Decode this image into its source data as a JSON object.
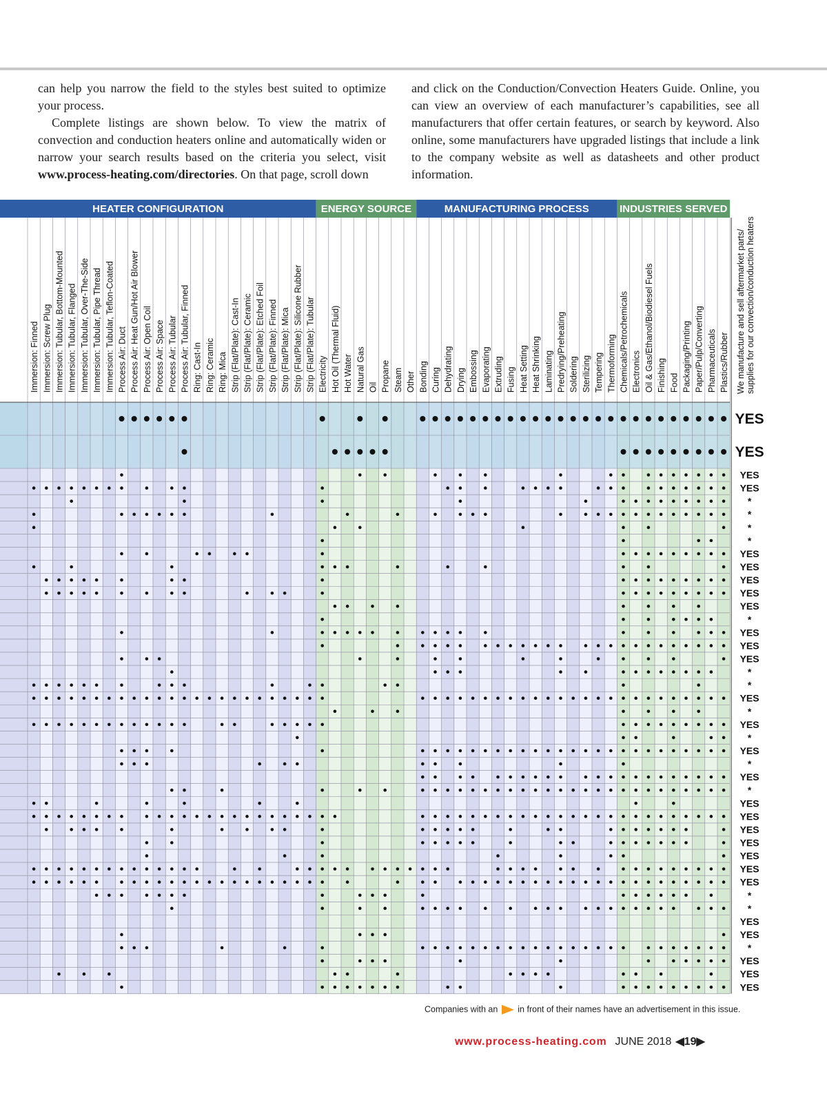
{
  "text": {
    "left": {
      "p1": "can help you narrow the field to the styles best suited to optimize your process.",
      "p2a": "Complete listings are shown below. To view the matrix of convection and conduction heaters online and automatically widen or narrow your search results based on the criteria you select, visit ",
      "p2url": "www.process-heating.com/directories",
      "p2b": ". On that page, scroll down"
    },
    "right": {
      "p1": "and click on the Conduction/Convection Heaters Guide. Online, you can view an overview of each manufacturer’s capabilities, see all manufacturers that offer certain features, or search by keyword. Also online, some manufacturers have upgraded listings that include a link to the company website as well as datasheets and other product information."
    }
  },
  "table": {
    "sections": [
      {
        "title": "HEATER CONFIGURATION",
        "columns": [
          "Immersion: Finned",
          "Immersion: Screw Plug",
          "Immersion: Tubular, Bottom-Mounted",
          "Immersion: Tubular, Flanged",
          "Immersion: Tubular, Over-The-Side",
          "Immersion: Tubular, Pipe Thread",
          "Immersion: Tubular, Teflon-Coated",
          "Process Air: Duct",
          "Process Air: Heat Gun/Hot Air Blower",
          "Process Air: Open Coil",
          "Process Air: Space",
          "Process Air: Tubular",
          "Process Air: Tubular, Finned",
          "Ring: Cast-In",
          "Ring: Ceramic",
          "Ring: Mica",
          "Strip (Flat/Plate): Cast-In",
          "Strip (Flat/Plate): Ceramic",
          "Strip (Flat/Plate): Etched Foil",
          "Strip (Flat/Plate): Finned",
          "Strip (Flat/Plate): Mica",
          "Strip (Flat/Plate): Silicone Rubber",
          "Strip (Flat/Plate): Tubular"
        ]
      },
      {
        "title": "ENERGY SOURCE",
        "columns": [
          "Electricity",
          "Hot Oil (Thermal Fluid)",
          "Hot Water",
          "Natural Gas",
          "Oil",
          "Propane",
          "Steam",
          "Other"
        ]
      },
      {
        "title": "MANUFACTURING PROCESS",
        "columns": [
          "Bonding",
          "Curing",
          "Dehydrating",
          "Drying",
          "Embossing",
          "Evaporating",
          "Extruding",
          "Fusing",
          "Heat Setting",
          "Heat Shrinking",
          "Laminating",
          "Predrying/Preheating",
          "Soldering",
          "Sterilizing",
          "Tempering",
          "Thermoforming"
        ]
      },
      {
        "title": "INDUSTRIES SERVED",
        "columns": [
          "Chemicals/Petrochemicals",
          "Electronics",
          "Oil & Gas/Ethanol/Biodiesel Fuels",
          "Finishing",
          "Food",
          "Packaging/Printing",
          "Paper/Pulp/Converting",
          "Pharmaceuticals",
          "Plastics/Rubber"
        ]
      }
    ],
    "last_column": [
      "We manufacture and sell aftermarket parts/",
      "supplies for our convection/conduction heaters"
    ],
    "rows": [
      {
        "dots": [
          7,
          8,
          9,
          10,
          11,
          12,
          23,
          26,
          28,
          31,
          32,
          33,
          34,
          35,
          36,
          37,
          38,
          39,
          40,
          41,
          42,
          43,
          44,
          45,
          46,
          47,
          48,
          49,
          50,
          51,
          52,
          53,
          54,
          55
        ],
        "answer": "YES"
      },
      {
        "dots": [
          12,
          24,
          25,
          26,
          27,
          28,
          47,
          48,
          49,
          50,
          51,
          52,
          53,
          54,
          55
        ],
        "answer": "YES"
      },
      {
        "dots": [
          7,
          26,
          28,
          32,
          34,
          36,
          42,
          46,
          47,
          49,
          50,
          51,
          52,
          53,
          54,
          55
        ],
        "answer": "YES"
      },
      {
        "dots": [
          0,
          1,
          2,
          3,
          4,
          5,
          6,
          7,
          9,
          11,
          12,
          23,
          33,
          34,
          36,
          39,
          40,
          41,
          42,
          45,
          46,
          47,
          49,
          50,
          51,
          52,
          53,
          54,
          55
        ],
        "answer": "YES"
      },
      {
        "dots": [
          3,
          12,
          23,
          34,
          44,
          47,
          48,
          49,
          50,
          51,
          52,
          53,
          54,
          55
        ],
        "answer": "*"
      },
      {
        "dots": [
          0,
          7,
          8,
          9,
          10,
          11,
          12,
          19,
          25,
          29,
          32,
          34,
          35,
          36,
          42,
          44,
          45,
          46,
          47,
          48,
          49,
          50,
          51,
          52,
          53,
          54,
          55
        ],
        "answer": "*"
      },
      {
        "dots": [
          0,
          24,
          26,
          39,
          47,
          49,
          55
        ],
        "answer": "*"
      },
      {
        "dots": [
          23,
          47,
          53,
          54
        ],
        "answer": "*"
      },
      {
        "dots": [
          7,
          9,
          13,
          14,
          16,
          17,
          23,
          47,
          48,
          49,
          50,
          51,
          52,
          53,
          54,
          55
        ],
        "answer": "YES"
      },
      {
        "dots": [
          0,
          3,
          11,
          23,
          24,
          25,
          29,
          33,
          36,
          47,
          49,
          55
        ],
        "answer": "YES"
      },
      {
        "dots": [
          1,
          2,
          3,
          4,
          5,
          7,
          11,
          12,
          23,
          47,
          48,
          49,
          50,
          51,
          52,
          53,
          54,
          55
        ],
        "answer": "YES"
      },
      {
        "dots": [
          1,
          2,
          3,
          4,
          5,
          7,
          9,
          11,
          12,
          17,
          19,
          20,
          23,
          47,
          48,
          49,
          50,
          51,
          52,
          53,
          54,
          55
        ],
        "answer": "YES"
      },
      {
        "dots": [
          24,
          25,
          27,
          29,
          47,
          49,
          51,
          53
        ],
        "answer": "YES"
      },
      {
        "dots": [
          23,
          47,
          49,
          51,
          52,
          53,
          54
        ],
        "answer": "*"
      },
      {
        "dots": [
          7,
          19,
          23,
          24,
          25,
          26,
          27,
          29,
          31,
          32,
          33,
          34,
          36,
          47,
          49,
          51,
          53,
          54,
          55
        ],
        "answer": "YES"
      },
      {
        "dots": [
          23,
          29,
          31,
          32,
          33,
          34,
          36,
          37,
          38,
          39,
          40,
          41,
          42,
          44,
          45,
          46,
          47,
          48,
          49,
          50,
          51,
          52,
          53,
          54,
          55
        ],
        "answer": "YES"
      },
      {
        "dots": [
          7,
          9,
          10,
          26,
          29,
          32,
          34,
          39,
          42,
          45,
          47,
          49,
          51,
          55
        ],
        "answer": "YES"
      },
      {
        "dots": [
          11,
          32,
          33,
          34,
          42,
          44,
          47,
          48,
          49,
          50,
          51,
          52,
          53,
          54
        ],
        "answer": "*"
      },
      {
        "dots": [
          0,
          1,
          2,
          3,
          4,
          5,
          7,
          10,
          11,
          12,
          19,
          22,
          23,
          28,
          29,
          47,
          53
        ],
        "answer": "*"
      },
      {
        "dots": [
          0,
          1,
          2,
          3,
          4,
          5,
          6,
          7,
          8,
          9,
          10,
          11,
          12,
          13,
          14,
          15,
          16,
          17,
          18,
          19,
          20,
          21,
          22,
          23,
          31,
          32,
          33,
          34,
          35,
          36,
          37,
          38,
          39,
          40,
          41,
          42,
          43,
          44,
          45,
          46,
          47,
          48,
          49,
          50,
          51,
          52,
          53,
          54,
          55
        ],
        "answer": "YES"
      },
      {
        "dots": [
          24,
          27,
          29,
          47,
          49,
          51,
          53
        ],
        "answer": "*"
      },
      {
        "dots": [
          0,
          1,
          2,
          3,
          4,
          5,
          6,
          7,
          8,
          9,
          10,
          11,
          12,
          15,
          16,
          19,
          20,
          21,
          22,
          23,
          47,
          48,
          49,
          50,
          51,
          52,
          53,
          54,
          55
        ],
        "answer": "YES"
      },
      {
        "dots": [
          21,
          47,
          48,
          51,
          54,
          55
        ],
        "answer": "*"
      },
      {
        "dots": [
          7,
          8,
          9,
          11,
          23,
          31,
          32,
          33,
          34,
          35,
          36,
          37,
          38,
          39,
          40,
          41,
          42,
          43,
          44,
          45,
          46,
          47,
          48,
          49,
          50,
          51,
          52,
          53,
          54,
          55
        ],
        "answer": "YES"
      },
      {
        "dots": [
          7,
          8,
          9,
          18,
          20,
          21,
          31,
          32,
          34,
          42,
          47
        ],
        "answer": "*"
      },
      {
        "dots": [
          31,
          32,
          34,
          35,
          37,
          38,
          39,
          40,
          41,
          42,
          44,
          45,
          46,
          47,
          48,
          49,
          50,
          51,
          52,
          53,
          54,
          55
        ],
        "answer": "YES"
      },
      {
        "dots": [
          11,
          12,
          15,
          23,
          26,
          28,
          31,
          32,
          33,
          34,
          35,
          36,
          37,
          38,
          39,
          40,
          41,
          42,
          43,
          44,
          45,
          46,
          47,
          48,
          49,
          50,
          51,
          52,
          53,
          54,
          55
        ],
        "answer": "*"
      },
      {
        "dots": [
          0,
          1,
          5,
          9,
          12,
          18,
          21,
          48,
          51
        ],
        "answer": "YES"
      },
      {
        "dots": [
          0,
          1,
          2,
          3,
          4,
          5,
          6,
          7,
          9,
          10,
          11,
          12,
          13,
          14,
          15,
          16,
          17,
          18,
          19,
          20,
          21,
          22,
          23,
          24,
          31,
          32,
          33,
          34,
          35,
          36,
          37,
          38,
          39,
          40,
          41,
          42,
          43,
          44,
          45,
          46,
          47,
          48,
          49,
          50,
          51,
          52,
          53,
          54,
          55
        ],
        "answer": "YES"
      },
      {
        "dots": [
          1,
          3,
          4,
          5,
          7,
          11,
          15,
          17,
          19,
          20,
          23,
          31,
          32,
          33,
          34,
          35,
          38,
          41,
          42,
          46,
          47,
          48,
          49,
          50,
          51,
          52,
          55
        ],
        "answer": "YES"
      },
      {
        "dots": [
          9,
          11,
          23,
          31,
          32,
          33,
          34,
          35,
          38,
          42,
          43,
          46,
          47,
          48,
          49,
          50,
          51,
          52,
          55
        ],
        "answer": "YES"
      },
      {
        "dots": [
          9,
          20,
          23,
          37,
          42,
          46,
          47,
          55
        ],
        "answer": "YES"
      },
      {
        "dots": [
          0,
          1,
          2,
          3,
          4,
          5,
          6,
          7,
          8,
          9,
          10,
          11,
          12,
          13,
          16,
          18,
          21,
          22,
          23,
          24,
          25,
          27,
          28,
          29,
          30,
          31,
          32,
          33,
          37,
          38,
          39,
          40,
          42,
          43,
          45,
          47,
          48,
          49,
          50,
          51,
          52,
          53,
          54,
          55
        ],
        "answer": "YES"
      },
      {
        "dots": [
          0,
          1,
          2,
          3,
          4,
          5,
          7,
          8,
          9,
          10,
          11,
          12,
          13,
          14,
          15,
          16,
          17,
          18,
          19,
          20,
          21,
          22,
          23,
          25,
          29,
          31,
          32,
          34,
          35,
          36,
          37,
          38,
          39,
          40,
          41,
          42,
          43,
          44,
          45,
          46,
          47,
          48,
          49,
          50,
          51,
          52,
          53,
          54,
          55
        ],
        "answer": "YES"
      },
      {
        "dots": [
          5,
          6,
          7,
          9,
          10,
          11,
          12,
          23,
          26,
          27,
          28,
          31,
          47,
          48,
          49,
          50,
          51,
          52,
          54
        ],
        "answer": "*"
      },
      {
        "dots": [
          11,
          23,
          26,
          28,
          31,
          32,
          33,
          34,
          36,
          38,
          40,
          41,
          42,
          44,
          45,
          46,
          47,
          48,
          49,
          50,
          51,
          53,
          54,
          55
        ],
        "answer": "*"
      },
      {
        "dots": [],
        "answer": "YES"
      },
      {
        "dots": [
          7,
          26,
          27,
          28,
          55
        ],
        "answer": "YES"
      },
      {
        "dots": [
          7,
          8,
          9,
          15,
          20,
          23,
          31,
          32,
          33,
          34,
          35,
          36,
          37,
          38,
          39,
          40,
          41,
          42,
          43,
          44,
          45,
          46,
          47,
          49,
          50,
          51,
          52,
          53,
          54,
          55
        ],
        "answer": "*"
      },
      {
        "dots": [
          23,
          26,
          27,
          28,
          34,
          42,
          49,
          51,
          52,
          53,
          54,
          55
        ],
        "answer": "YES"
      },
      {
        "dots": [
          2,
          4,
          6,
          24,
          25,
          29,
          38,
          39,
          40,
          41,
          47,
          48,
          50,
          54
        ],
        "answer": "YES"
      },
      {
        "dots": [
          7,
          23,
          24,
          25,
          26,
          27,
          28,
          29,
          33,
          34,
          42,
          47,
          48,
          49,
          50,
          51,
          52,
          53,
          54,
          55
        ],
        "answer": "YES"
      }
    ]
  },
  "footer": {
    "note_a": "Companies with an",
    "note_b": "in front of their names have an advertisement in this issue.",
    "url": "www.process-heating.com",
    "date": "JUNE 2018",
    "page": "19"
  }
}
